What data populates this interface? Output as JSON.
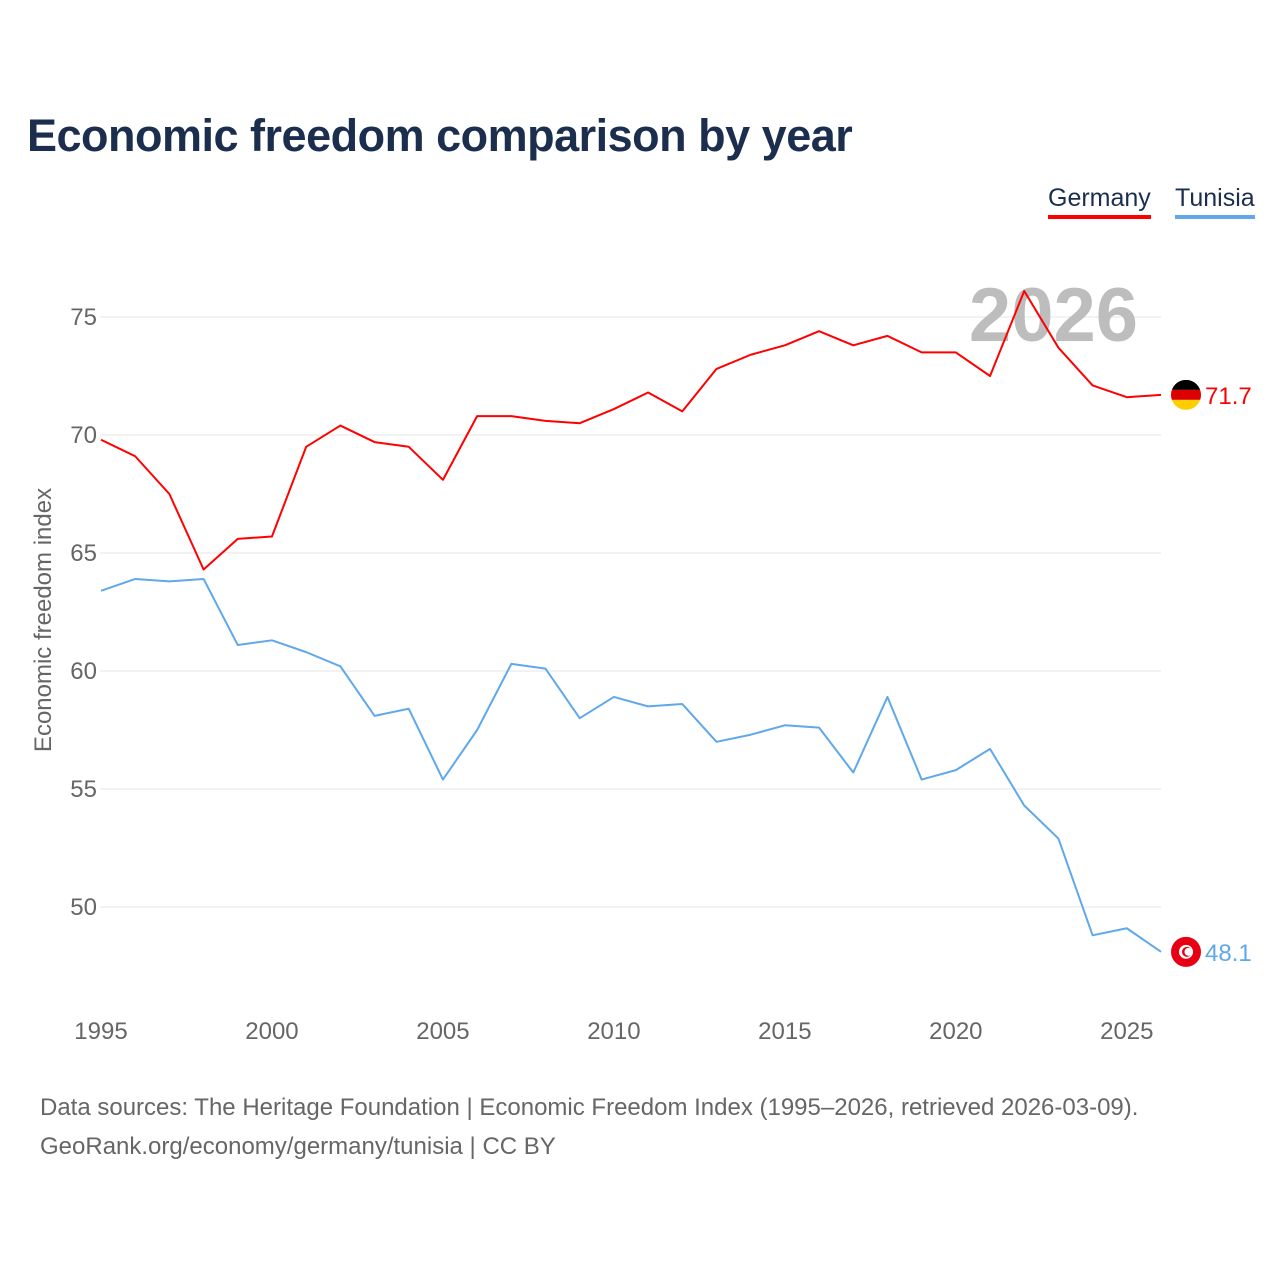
{
  "chart_data": {
    "type": "line",
    "title": "Economic freedom comparison by year",
    "xlabel": "",
    "ylabel": "Economic freedom index",
    "xlim": [
      1995,
      2026
    ],
    "ylim": [
      46,
      78
    ],
    "x_ticks": [
      1995,
      2000,
      2005,
      2010,
      2015,
      2020,
      2025
    ],
    "y_ticks": [
      50,
      55,
      60,
      65,
      70,
      75
    ],
    "grid": true,
    "legend_position": "top-right",
    "watermark_year": "2026",
    "x": [
      1995,
      1996,
      1997,
      1998,
      1999,
      2000,
      2001,
      2002,
      2003,
      2004,
      2005,
      2006,
      2007,
      2008,
      2009,
      2010,
      2011,
      2012,
      2013,
      2014,
      2015,
      2016,
      2017,
      2018,
      2019,
      2020,
      2021,
      2022,
      2023,
      2024,
      2025,
      2026
    ],
    "series": [
      {
        "name": "Germany",
        "color": "#ff0000",
        "end_label": "71.7",
        "values": [
          69.8,
          69.1,
          67.5,
          64.3,
          65.6,
          65.7,
          69.5,
          70.4,
          69.7,
          69.5,
          68.1,
          70.8,
          70.8,
          70.6,
          70.5,
          71.1,
          71.8,
          71.0,
          72.8,
          73.4,
          73.8,
          74.4,
          73.8,
          74.2,
          73.5,
          73.5,
          72.5,
          76.1,
          73.7,
          72.1,
          71.6,
          71.7
        ]
      },
      {
        "name": "Tunisia",
        "color": "#5fa8ec",
        "end_label": "48.1",
        "values": [
          63.4,
          63.9,
          63.8,
          63.9,
          61.1,
          61.3,
          60.8,
          60.2,
          58.1,
          58.4,
          55.4,
          57.5,
          60.3,
          60.1,
          58.0,
          58.9,
          58.5,
          58.6,
          57.0,
          57.3,
          57.7,
          57.6,
          55.7,
          58.9,
          55.4,
          55.8,
          56.7,
          54.3,
          52.9,
          48.8,
          49.1,
          48.1
        ]
      }
    ]
  },
  "footer": {
    "line1": "Data sources: The Heritage Foundation | Economic Freedom Index (1995–2026, retrieved 2026-03-09).",
    "line2": "GeoRank.org/economy/germany/tunisia | CC BY"
  }
}
